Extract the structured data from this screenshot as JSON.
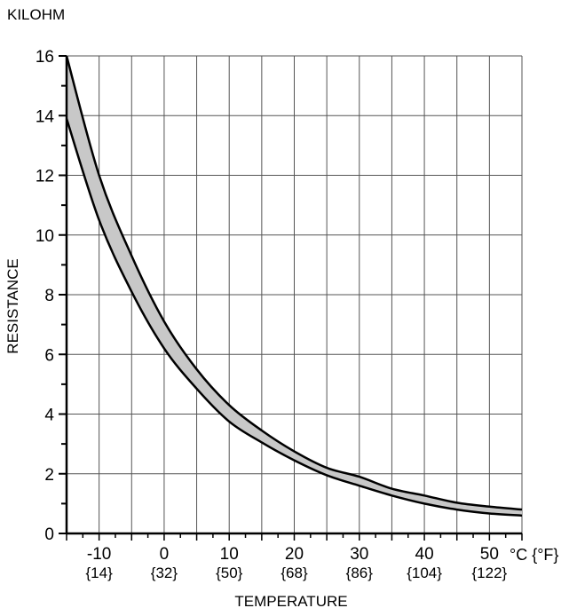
{
  "chart_data": {
    "type": "area",
    "unit_label": "KILOHM",
    "ylabel": "RESISTANCE",
    "xlabel": "TEMPERATURE",
    "x_unit_label": "°C {°F}",
    "xlim": [
      -15,
      55
    ],
    "ylim": [
      0,
      16
    ],
    "grid": true,
    "x_ticks": [
      {
        "c": "-10",
        "f": "{14}",
        "value": -10
      },
      {
        "c": "0",
        "f": "{32}",
        "value": 0
      },
      {
        "c": "10",
        "f": "{50}",
        "value": 10
      },
      {
        "c": "20",
        "f": "{68}",
        "value": 20
      },
      {
        "c": "30",
        "f": "{86}",
        "value": 30
      },
      {
        "c": "40",
        "f": "{104}",
        "value": 40
      },
      {
        "c": "50",
        "f": "{122}",
        "value": 50
      }
    ],
    "y_ticks": [
      "0",
      "2",
      "4",
      "6",
      "8",
      "10",
      "12",
      "14",
      "16"
    ],
    "x": [
      -15,
      -10,
      -5,
      0,
      5,
      10,
      15,
      20,
      25,
      30,
      35,
      40,
      45,
      50,
      55
    ],
    "series": [
      {
        "values": [
          16.0,
          12.0,
          9.3,
          7.1,
          5.5,
          4.3,
          3.45,
          2.75,
          2.2,
          1.9,
          1.5,
          1.27,
          1.03,
          0.9,
          0.8
        ]
      },
      {
        "values": [
          13.9,
          10.5,
          8.1,
          6.2,
          4.85,
          3.75,
          3.05,
          2.45,
          1.95,
          1.6,
          1.27,
          1.0,
          0.8,
          0.67,
          0.6
        ]
      }
    ],
    "band_fill": "#c8c8c8",
    "line_color": "#000000"
  }
}
